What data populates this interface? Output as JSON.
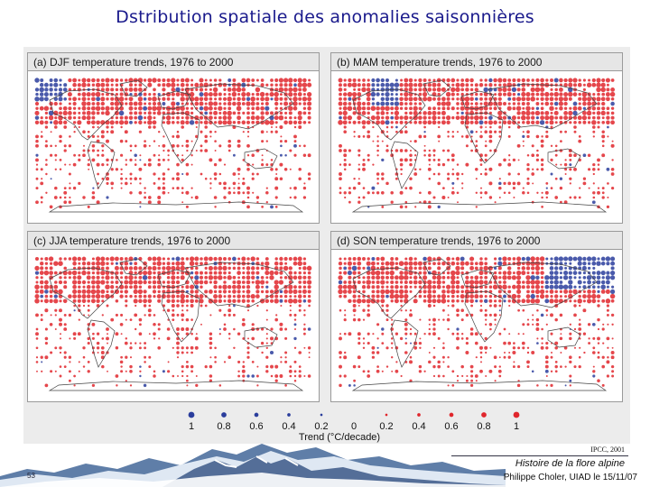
{
  "slide": {
    "title": "Dstribution spatiale des anomalies saisonnières",
    "number": "53"
  },
  "panels": [
    {
      "id": "djf",
      "title": "(a) DJF temperature trends, 1976 to 2000"
    },
    {
      "id": "mam",
      "title": "(b) MAM temperature trends, 1976 to 2000"
    },
    {
      "id": "jja",
      "title": "(c) JJA temperature trends, 1976 to 2000"
    },
    {
      "id": "son",
      "title": "(d) SON temperature trends, 1976 to 2000"
    }
  ],
  "legend": {
    "labels": [
      "1",
      "0.8",
      "0.6",
      "0.4",
      "0.2",
      "0",
      "0.2",
      "0.4",
      "0.6",
      "0.8",
      "1"
    ],
    "title": "Trend (°C/decade)",
    "colors": {
      "cooling": "#2a3d9c",
      "warming": "#e0262c"
    }
  },
  "credit": "IPCC, 2001",
  "footer": {
    "title": "Histoire de la flore alpine",
    "author": "Philippe Choler, UIAD le 15/11/07"
  }
}
